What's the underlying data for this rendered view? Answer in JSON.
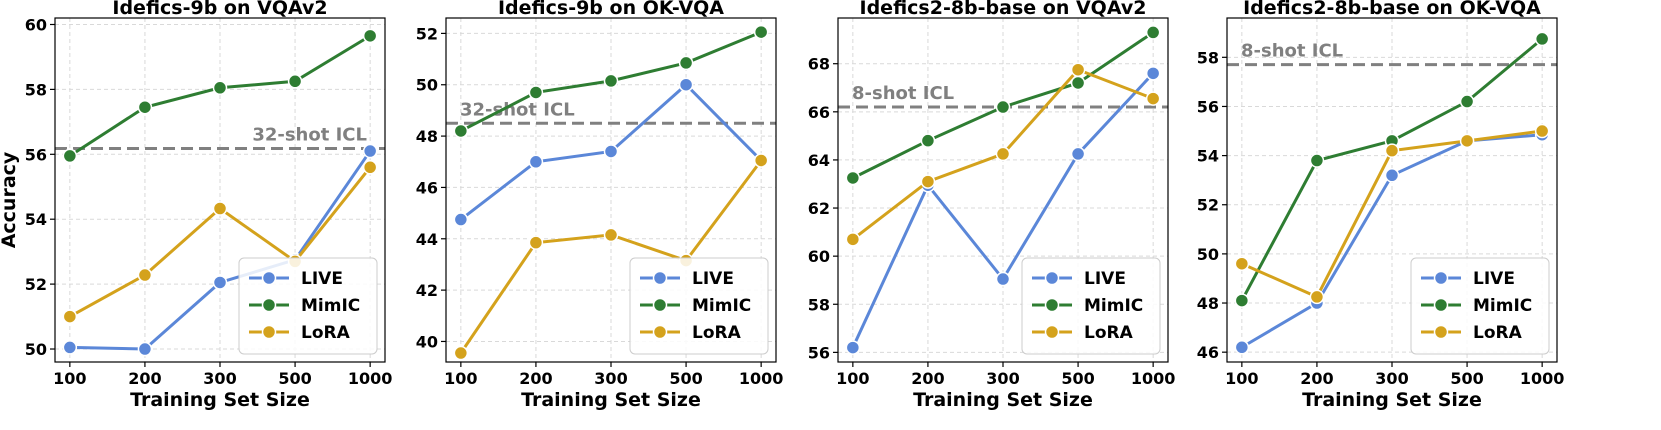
{
  "figure": {
    "ylabel_shared": "Accuracy"
  },
  "series_style": {
    "LIVE": "#5b87d8",
    "MimIC": "#2e7d32",
    "LoRA": "#d4a21c",
    "reference": "#808080"
  },
  "chart_data": [
    {
      "type": "line",
      "title": "Idefics-9b on VQAv2",
      "xlabel": "Training Set Size",
      "ylabel": "Accuracy",
      "categories": [
        "100",
        "200",
        "300",
        "500",
        "1000"
      ],
      "ylim": [
        49.6,
        60.2
      ],
      "yticks": [
        50,
        52,
        54,
        56,
        58,
        60
      ],
      "series": [
        {
          "name": "LIVE",
          "values": [
            50.05,
            50.0,
            52.05,
            52.75,
            56.1
          ]
        },
        {
          "name": "MimIC",
          "values": [
            55.95,
            57.45,
            58.05,
            58.25,
            59.65
          ]
        },
        {
          "name": "LoRA",
          "values": [
            51.0,
            52.28,
            54.33,
            52.7,
            55.6
          ]
        }
      ],
      "reference": {
        "label": "32-shot ICL",
        "value": 56.18
      },
      "legend": "lower-right"
    },
    {
      "type": "line",
      "title": "Idefics-9b on OK-VQA",
      "xlabel": "Training Set Size",
      "ylabel": "",
      "categories": [
        "100",
        "200",
        "300",
        "500",
        "1000"
      ],
      "ylim": [
        39.2,
        52.6
      ],
      "yticks": [
        40,
        42,
        44,
        46,
        48,
        50,
        52
      ],
      "series": [
        {
          "name": "LIVE",
          "values": [
            44.75,
            47.0,
            47.4,
            50.0,
            47.05
          ]
        },
        {
          "name": "MimIC",
          "values": [
            48.2,
            49.7,
            50.15,
            50.85,
            52.05
          ]
        },
        {
          "name": "LoRA",
          "values": [
            39.55,
            43.85,
            44.15,
            43.15,
            47.05
          ]
        }
      ],
      "reference": {
        "label": "32-shot ICL",
        "value": 48.5
      },
      "legend": "lower-right"
    },
    {
      "type": "line",
      "title": "Idefics2-8b-base on VQAv2",
      "xlabel": "Training Set Size",
      "ylabel": "",
      "categories": [
        "100",
        "200",
        "300",
        "500",
        "1000"
      ],
      "ylim": [
        55.6,
        69.9
      ],
      "yticks": [
        56,
        58,
        60,
        62,
        64,
        66,
        68
      ],
      "series": [
        {
          "name": "LIVE",
          "values": [
            56.2,
            62.95,
            59.05,
            64.25,
            67.6
          ]
        },
        {
          "name": "MimIC",
          "values": [
            63.25,
            64.8,
            66.2,
            67.2,
            69.3
          ]
        },
        {
          "name": "LoRA",
          "values": [
            60.7,
            63.1,
            64.25,
            67.75,
            66.55
          ]
        }
      ],
      "reference": {
        "label": "8-shot ICL",
        "value": 66.2
      },
      "legend": "lower-right"
    },
    {
      "type": "line",
      "title": "Idefics2-8b-base on OK-VQA",
      "xlabel": "Training Set Size",
      "ylabel": "",
      "categories": [
        "100",
        "200",
        "300",
        "500",
        "1000"
      ],
      "ylim": [
        45.6,
        59.6
      ],
      "yticks": [
        46,
        48,
        50,
        52,
        54,
        56,
        58
      ],
      "series": [
        {
          "name": "LIVE",
          "values": [
            46.2,
            48.0,
            53.2,
            54.6,
            54.85
          ]
        },
        {
          "name": "MimIC",
          "values": [
            48.1,
            53.8,
            54.6,
            56.2,
            58.75
          ]
        },
        {
          "name": "LoRA",
          "values": [
            49.6,
            48.25,
            54.2,
            54.6,
            55.0
          ]
        }
      ],
      "reference": {
        "label": "8-shot ICL",
        "value": 57.7
      },
      "legend": "lower-right"
    }
  ]
}
